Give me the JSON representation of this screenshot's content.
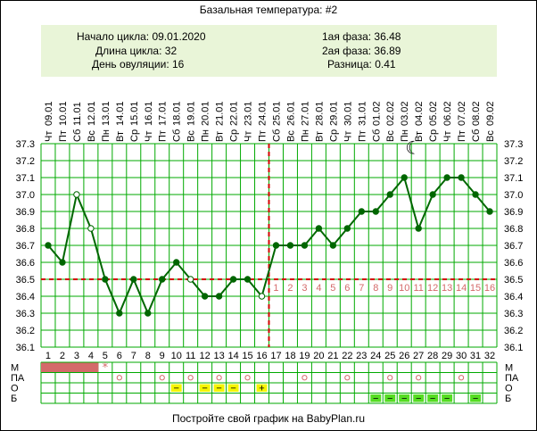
{
  "title": "Базальная температура: #2",
  "info": {
    "cycle_start": "Начало цикла: 09.01.2020",
    "cycle_length": "Длина цикла: 32",
    "ovulation_day": "День овуляции: 16",
    "phase1": "1ая фаза: 36.48",
    "phase2": "2ая фаза: 36.89",
    "difference": "Разница: 0.41"
  },
  "footer": "Постройте свой график на BabyPlan.ru",
  "row_labels": [
    "М",
    "ПА",
    "О",
    "Б"
  ],
  "moon_icon": "☾",
  "colors": {
    "line": "#006600",
    "coverline": "#d40000",
    "grid": "#00aa00",
    "info_bg": "#e9f5d8",
    "menses": "#d46a6a",
    "yellow": "#f5f500",
    "green": "#55dd22",
    "phase_day_text": "#d46a6a"
  },
  "chart_data": {
    "type": "line",
    "title": "Базальная температура: #2",
    "dates": [
      "09.01",
      "10.01",
      "11.01",
      "12.01",
      "13.01",
      "14.01",
      "15.01",
      "16.01",
      "17.01",
      "18.01",
      "19.01",
      "20.01",
      "21.01",
      "22.01",
      "23.01",
      "24.01",
      "25.01",
      "26.01",
      "27.01",
      "28.01",
      "29.01",
      "30.01",
      "31.01",
      "01.02",
      "02.02",
      "03.02",
      "04.02",
      "05.02",
      "06.02",
      "07.02",
      "08.02",
      "09.02"
    ],
    "weekdays": [
      "Чт",
      "Пт",
      "Сб",
      "Вс",
      "Пн",
      "Вт",
      "Ср",
      "Чт",
      "Пт",
      "Сб",
      "Вс",
      "Пн",
      "Вт",
      "Ср",
      "Чт",
      "Пт",
      "Сб",
      "Вс",
      "Пн",
      "Вт",
      "Ср",
      "Чт",
      "Пт",
      "Сб",
      "Вс",
      "Пн",
      "Вт",
      "Ср",
      "Чт",
      "Пт",
      "Сб",
      "Вс"
    ],
    "days": [
      1,
      2,
      3,
      4,
      5,
      6,
      7,
      8,
      9,
      10,
      11,
      12,
      13,
      14,
      15,
      16,
      17,
      18,
      19,
      20,
      21,
      22,
      23,
      24,
      25,
      26,
      27,
      28,
      29,
      30,
      31,
      32
    ],
    "temperatures": [
      36.7,
      36.6,
      37.0,
      36.8,
      36.5,
      36.3,
      36.5,
      36.3,
      36.5,
      36.6,
      36.5,
      36.4,
      36.4,
      36.5,
      36.5,
      36.4,
      36.7,
      36.7,
      36.7,
      36.8,
      36.7,
      36.8,
      36.9,
      36.9,
      37.0,
      37.1,
      36.8,
      37.0,
      37.1,
      37.1,
      37.0,
      36.9
    ],
    "hollow_markers": [
      3,
      4,
      11,
      16
    ],
    "y_ticks": [
      36.1,
      36.2,
      36.3,
      36.4,
      36.5,
      36.6,
      36.7,
      36.8,
      36.9,
      37.0,
      37.1,
      37.2,
      37.3
    ],
    "ylim": [
      36.1,
      37.3
    ],
    "coverline": 36.5,
    "ovulation_day": 16,
    "post_ovulation_labels": [
      "1",
      "2",
      "3",
      "4",
      "5",
      "6",
      "7",
      "8",
      "9",
      "10",
      "11",
      "12",
      "13",
      "14",
      "15",
      "16"
    ],
    "moon_day": 26,
    "rows": {
      "menses_days": [
        1,
        2,
        3,
        4
      ],
      "menses_star_day": 5,
      "pa_days": [
        6,
        9,
        11,
        13,
        15,
        19,
        22,
        25,
        27,
        30
      ],
      "o_yellow": [
        {
          "day": 10,
          "sign": "−"
        },
        {
          "day": 12,
          "sign": "−"
        },
        {
          "day": 13,
          "sign": "−"
        },
        {
          "day": 14,
          "sign": "−"
        },
        {
          "day": 16,
          "sign": "+"
        }
      ],
      "b_green": [
        {
          "day": 24,
          "sign": "−"
        },
        {
          "day": 25,
          "sign": "−"
        },
        {
          "day": 26,
          "sign": "−"
        },
        {
          "day": 27,
          "sign": "−"
        },
        {
          "day": 28,
          "sign": "−"
        },
        {
          "day": 29,
          "sign": "−"
        },
        {
          "day": 31,
          "sign": "−"
        }
      ]
    }
  }
}
